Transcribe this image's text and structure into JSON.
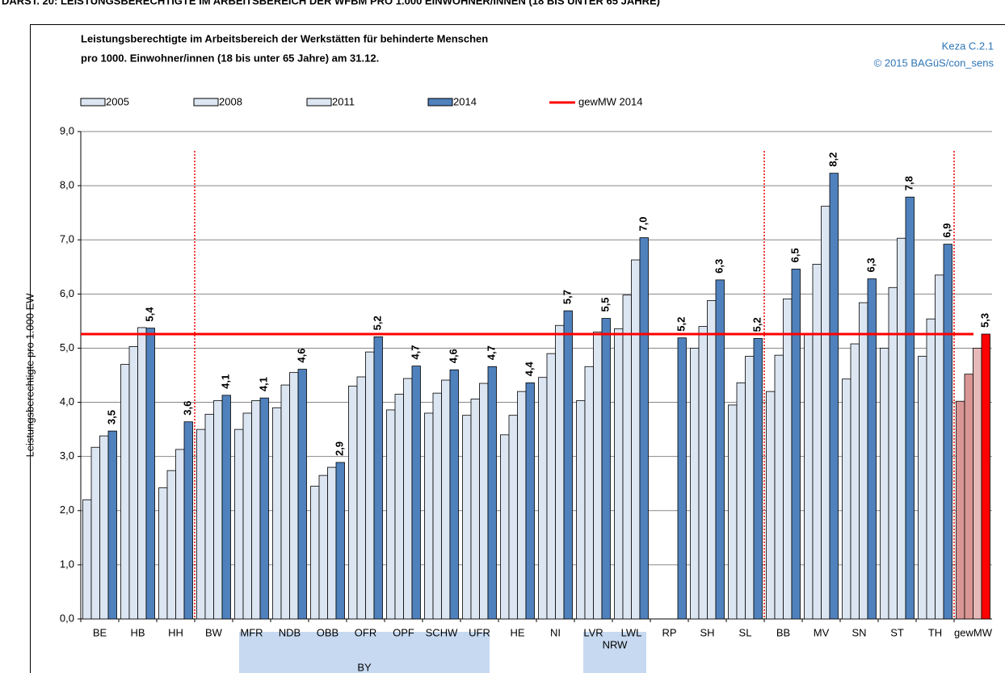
{
  "header": "DARST. 20: LEISTUNGSBERECHTIGTE IM ARBEITSBEREICH DER WFBM PRO 1.000 EINWOHNER/INNEN (18 BIS UNTER 65 JAHRE)",
  "chart_data": {
    "type": "bar",
    "title": [
      "Leistungsberechtigte im Arbeitsbereich der Werkstätten für behinderte Menschen",
      "pro 1000. Einwohner/innen (18 bis unter 65 Jahre) am 31.12."
    ],
    "source": [
      "Keza C.2.1",
      "© 2015 BAGüS/con_sens"
    ],
    "y_label": "Leistungsberechtigte  pro 1.000 EW",
    "categories": [
      "BE",
      "HB",
      "HH",
      "BW",
      "MFR",
      "NDB",
      "OBB",
      "OFR",
      "OPF",
      "SCHW",
      "UFR",
      "HE",
      "NI",
      "LVR",
      "LWL",
      "RP",
      "SH",
      "SL",
      "BB",
      "MV",
      "SN",
      "ST",
      "TH",
      "gewMW"
    ],
    "series": [
      {
        "name": "2005",
        "color": "#dce6f2",
        "highlight_color": "#d99694",
        "values": [
          2.2,
          4.7,
          2.42,
          3.5,
          3.5,
          3.9,
          2.45,
          4.3,
          3.86,
          3.8,
          3.76,
          3.4,
          4.46,
          4.03,
          5.36,
          null,
          5.0,
          3.95,
          4.2,
          5.25,
          4.43,
          5.0,
          4.85,
          4.02
        ]
      },
      {
        "name": "2008",
        "color": "#dce6f2",
        "highlight_color": "#d99694",
        "values": [
          3.17,
          5.03,
          2.74,
          3.78,
          3.8,
          4.32,
          2.65,
          4.47,
          4.15,
          4.17,
          4.06,
          3.76,
          4.9,
          4.66,
          5.98,
          null,
          5.4,
          4.36,
          4.87,
          6.55,
          5.08,
          6.12,
          5.54,
          4.52
        ]
      },
      {
        "name": "2011",
        "color": "#dce6f2",
        "highlight_color": "#e6b9b8",
        "values": [
          3.38,
          5.38,
          3.13,
          4.03,
          4.03,
          4.55,
          2.8,
          4.93,
          4.44,
          4.41,
          4.35,
          4.2,
          5.42,
          5.3,
          6.63,
          null,
          5.88,
          4.85,
          5.91,
          7.62,
          5.84,
          7.03,
          6.35,
          5.0
        ]
      },
      {
        "name": "2014",
        "color": "#4f81bd",
        "highlight_color": "#ff0000",
        "values": [
          3.47,
          5.37,
          3.64,
          4.13,
          4.08,
          4.61,
          2.89,
          5.21,
          4.67,
          4.6,
          4.66,
          4.36,
          5.69,
          5.55,
          7.04,
          5.19,
          6.26,
          5.18,
          6.46,
          8.23,
          6.28,
          7.79,
          6.92,
          5.26
        ],
        "value_labels": [
          "3,5",
          "5,4",
          "3,6",
          "4,1",
          "4,1",
          "4,6",
          "2,9",
          "5,2",
          "4,7",
          "4,6",
          "4,7",
          "4,4",
          "5,7",
          "5,5",
          "7,0",
          "5,2",
          "6,3",
          "5,2",
          "6,5",
          "8,2",
          "6,3",
          "7,8",
          "6,9",
          "5,3"
        ]
      }
    ],
    "reference_line": {
      "name": "gewMW 2014",
      "value": 5.26,
      "color": "#ff0000"
    },
    "groups": [
      {
        "label": "BY"
      },
      {
        "label": "NRW"
      }
    ],
    "ylim": [
      0,
      9
    ],
    "yticks": [
      {
        "value": 0,
        "label": "0,0"
      },
      {
        "value": 1,
        "label": "1,0"
      },
      {
        "value": 2,
        "label": "2,0"
      },
      {
        "value": 3,
        "label": "3,0"
      },
      {
        "value": 4,
        "label": "4,0"
      },
      {
        "value": 5,
        "label": "5,0"
      },
      {
        "value": 6,
        "label": "6,0"
      },
      {
        "value": 7,
        "label": "7,0"
      },
      {
        "value": 8,
        "label": "8,0"
      },
      {
        "value": 9,
        "label": "9,0"
      }
    ],
    "grid": true
  }
}
